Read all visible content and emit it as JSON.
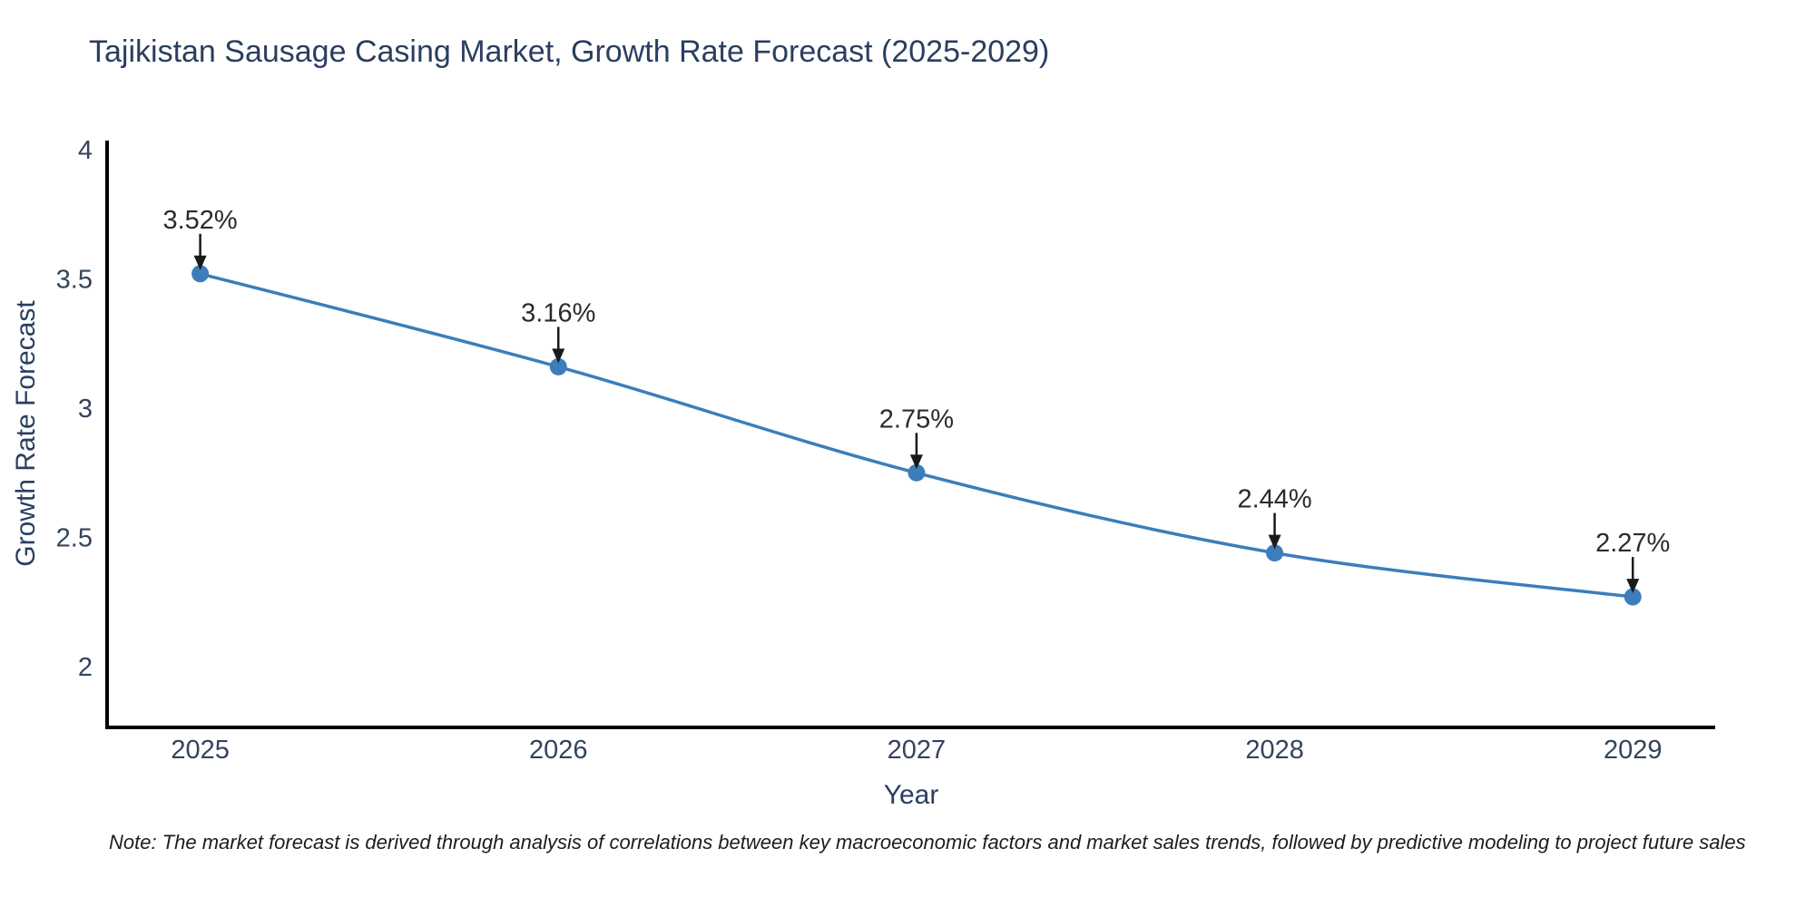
{
  "title": "Tajikistan Sausage Casing Market, Growth Rate Forecast (2025-2029)",
  "note": "Note: The market forecast is derived through analysis of correlations between key macroeconomic factors and market sales trends, followed by predictive modeling to project future sales",
  "colors": {
    "line": "#3c7dba",
    "marker": "#3c7dba",
    "axis_line": "#000000",
    "title_text": "#2a3f5f",
    "tick_text": "#33445c",
    "annotation_text": "#2b2b2b",
    "arrow": "#1a1a1a",
    "background": "#ffffff"
  },
  "chart_data": {
    "type": "line",
    "title": "Tajikistan Sausage Casing Market, Growth Rate Forecast (2025-2029)",
    "x": [
      2025,
      2026,
      2027,
      2028,
      2029
    ],
    "values": [
      3.52,
      3.16,
      2.75,
      2.44,
      2.27
    ],
    "point_labels": [
      "3.52%",
      "3.16%",
      "2.75%",
      "2.44%",
      "2.27%"
    ],
    "xlabel": "Year",
    "ylabel": "Growth Rate Forecast",
    "yticks": [
      4,
      3.5,
      3,
      2.5,
      2
    ],
    "ytick_labels": [
      "4",
      "3.5",
      "3",
      "2.5",
      "2"
    ],
    "xtick_labels": [
      "2025",
      "2026",
      "2027",
      "2028",
      "2029"
    ],
    "ylim": [
      1.765,
      4.035
    ],
    "xlim": [
      2024.74,
      2029.23
    ],
    "grid": false,
    "legend": "none",
    "line_shape": "spline",
    "marker": "circle"
  }
}
